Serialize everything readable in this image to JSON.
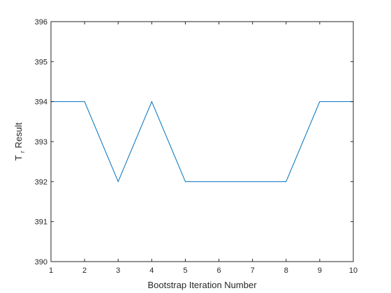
{
  "chart_data": {
    "type": "line",
    "title": "",
    "xlabel": "Bootstrap Iteration Number",
    "ylabel": {
      "main": "T",
      "sub": "r",
      "rest": " Result"
    },
    "xlim": [
      1,
      10
    ],
    "ylim": [
      390,
      396
    ],
    "xticks": [
      1,
      2,
      3,
      4,
      5,
      6,
      7,
      8,
      9,
      10
    ],
    "yticks": [
      390,
      391,
      392,
      393,
      394,
      395,
      396
    ],
    "grid": false,
    "line_color": "#0072BD",
    "series": [
      {
        "x": [
          1,
          2,
          3,
          4,
          5,
          6,
          7,
          8,
          9,
          10
        ],
        "y": [
          394,
          394,
          392,
          394,
          392,
          392,
          392,
          392,
          394,
          394
        ]
      }
    ]
  }
}
